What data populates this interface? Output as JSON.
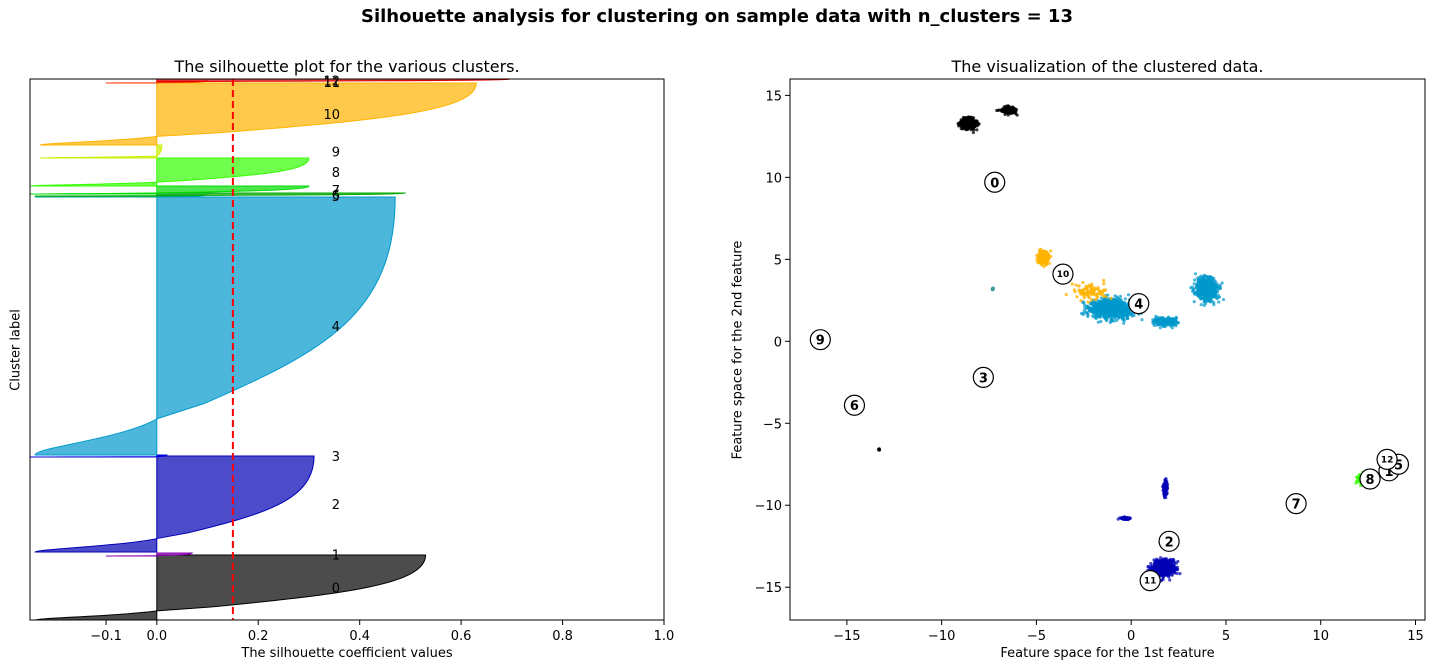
{
  "figure": {
    "title": "Silhouette analysis for clustering on sample data with n_clusters = 13"
  },
  "chart_data": [
    {
      "type": "area",
      "title": "The silhouette plot for the various clusters.",
      "xlabel": "The silhouette coefficient values",
      "ylabel": "Cluster label",
      "xlim": [
        -0.25,
        1.0
      ],
      "xticks": [
        -0.1,
        0.0,
        0.2,
        0.4,
        0.6,
        0.8,
        1.0
      ],
      "xtick_labels": [
        "−0.1",
        "0.0",
        "0.2",
        "0.4",
        "0.6",
        "0.8",
        "1.0"
      ],
      "mean_silhouette": 0.15,
      "clusters": [
        {
          "label": "0",
          "color": "#000000",
          "max": 0.53,
          "min": -0.24
        },
        {
          "label": "1",
          "color": "#8a00b0",
          "max": 0.07,
          "min": -0.1
        },
        {
          "label": "2",
          "color": "#0000b5",
          "max": 0.31,
          "min": -0.24
        },
        {
          "label": "3",
          "color": "#0000dd",
          "max": 0.02,
          "min": -0.25
        },
        {
          "label": "4",
          "color": "#0099cc",
          "max": 0.47,
          "min": -0.24
        },
        {
          "label": "5",
          "color": "#00aa88",
          "max": 0.1,
          "min": -0.24
        },
        {
          "label": "6",
          "color": "#00aa00",
          "max": 0.49,
          "min": -0.24
        },
        {
          "label": "7",
          "color": "#00dd00",
          "max": 0.3,
          "min": -0.25
        },
        {
          "label": "8",
          "color": "#33ff00",
          "max": 0.3,
          "min": -0.25
        },
        {
          "label": "9",
          "color": "#ccee00",
          "max": 0.01,
          "min": -0.23
        },
        {
          "label": "10",
          "color": "#ffb300",
          "max": 0.63,
          "min": -0.23
        },
        {
          "label": "11",
          "color": "#ff3300",
          "max": 0.1,
          "min": -0.1
        },
        {
          "label": "12",
          "color": "#dd0000",
          "max": 0.7,
          "min": 0.0
        }
      ]
    },
    {
      "type": "scatter",
      "title": "The visualization of the clustered data.",
      "xlabel": "Feature space for the 1st feature",
      "ylabel": "Feature space for the 2nd feature",
      "xlim": [
        -18,
        15.5
      ],
      "ylim": [
        -17,
        16
      ],
      "xticks": [
        -15,
        -10,
        -5,
        0,
        5,
        10,
        15
      ],
      "xtick_labels": [
        "−15",
        "−10",
        "−5",
        "0",
        "5",
        "10",
        "15"
      ],
      "yticks": [
        -15,
        -10,
        -5,
        0,
        5,
        10,
        15
      ],
      "ytick_labels": [
        "−15",
        "−10",
        "−5",
        "0",
        "5",
        "10",
        "15"
      ],
      "centers": [
        {
          "label": "0",
          "x": -7.2,
          "y": 9.7
        },
        {
          "label": "1",
          "x": 13.6,
          "y": -7.9
        },
        {
          "label": "2",
          "x": 2.0,
          "y": -12.2
        },
        {
          "label": "3",
          "x": -7.8,
          "y": -2.2
        },
        {
          "label": "4",
          "x": 0.4,
          "y": 2.3
        },
        {
          "label": "5",
          "x": 14.1,
          "y": -7.5
        },
        {
          "label": "6",
          "x": -14.6,
          "y": -3.9
        },
        {
          "label": "7",
          "x": 8.7,
          "y": -9.9
        },
        {
          "label": "8",
          "x": 12.6,
          "y": -8.4
        },
        {
          "label": "9",
          "x": -16.4,
          "y": 0.1
        },
        {
          "label": "10",
          "x": -3.6,
          "y": 4.1
        },
        {
          "label": "11",
          "x": 1.0,
          "y": -14.6
        },
        {
          "label": "12",
          "x": 13.5,
          "y": -7.2
        }
      ],
      "point_clouds": [
        {
          "cluster": "0",
          "color": "#000000"
        },
        {
          "cluster": "10",
          "color": "#ffb300"
        },
        {
          "cluster": "4",
          "color": "#0099cc"
        },
        {
          "cluster": "2",
          "color": "#0000b5"
        },
        {
          "cluster": "8",
          "color": "#33ff00"
        }
      ]
    }
  ]
}
